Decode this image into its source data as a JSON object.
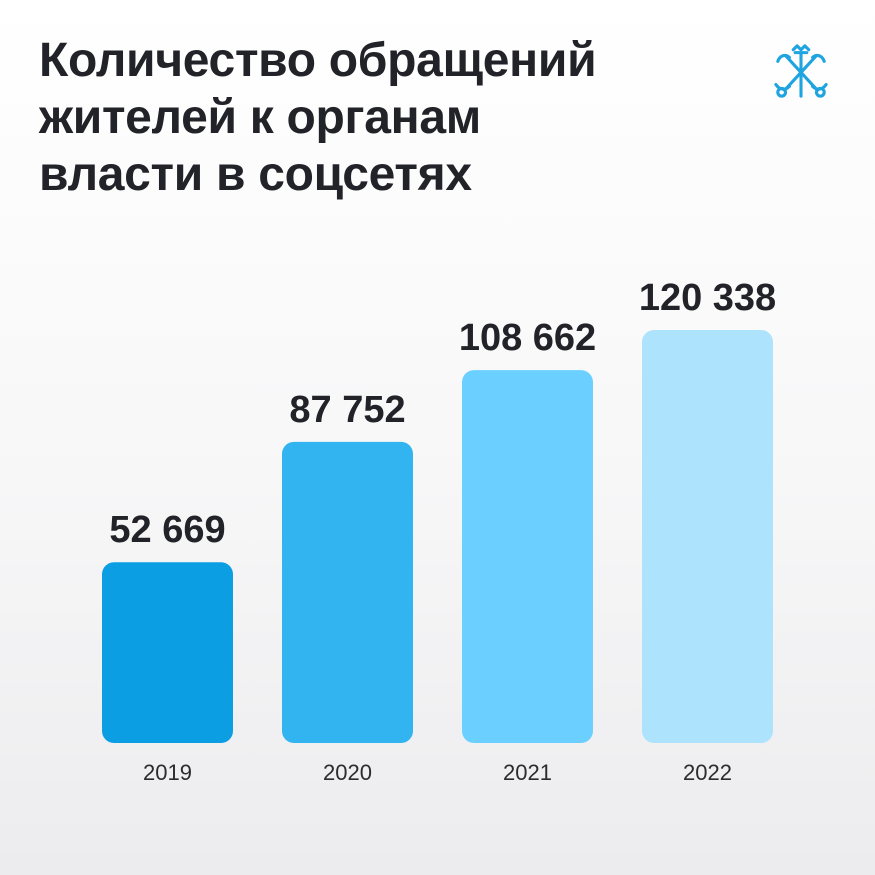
{
  "title_lines": [
    "Количество обращений",
    "жителей к органам",
    "власти в соцсетях"
  ],
  "logo": {
    "icon": "crossed-anchors-and-scepter-emblem",
    "color": "#1ea4df"
  },
  "chart_data": {
    "type": "bar",
    "title": "Количество обращений жителей к органам власти в соцсетях",
    "xlabel": "",
    "ylabel": "",
    "categories": [
      "2019",
      "2020",
      "2021",
      "2022"
    ],
    "values": [
      52669,
      87752,
      108662,
      120338
    ],
    "value_labels": [
      "52 669",
      "87 752",
      "108 662",
      "120 338"
    ],
    "ylim": [
      0,
      125000
    ],
    "grid": false,
    "legend": "none",
    "bar_colors": [
      "#0b9ee3",
      "#31b4f0",
      "#6bd0ff",
      "#aee3fd"
    ]
  }
}
